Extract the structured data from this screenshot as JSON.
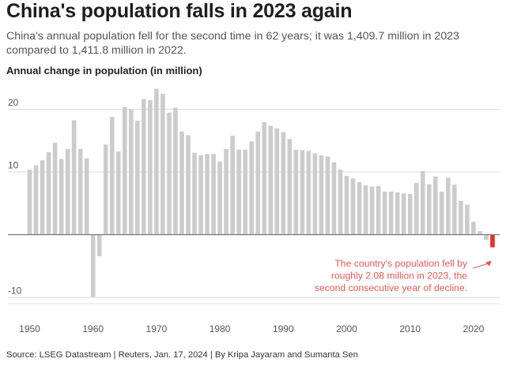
{
  "title": "China's population falls in 2023 again",
  "subtitle": "China's annual population fell for the second time in 62 years; it was 1,409.7 million in 2023 compared to 1,411.8 million in 2022.",
  "source": "Source: LSEG Datastream | Reuters, Jan. 17, 2024 | By Kripa Jayaram and Sumanta Sen",
  "colors": {
    "bar": "#cccccc",
    "highlight": "#e8302e",
    "annotation": "#e05a55",
    "grid": "#dddddd",
    "axis": "#777777"
  },
  "chart_data": {
    "type": "bar",
    "title": "China's population falls in 2023 again",
    "subtitle": "China's annual population fell for the second time in 62 years; it was 1,409.7 million in 2023 compared to 1,411.8 million in 2022.",
    "ylabel": "Annual change in population (in million)",
    "xlabel": "",
    "ylim": [
      -10,
      24
    ],
    "xlim": [
      1949,
      2024
    ],
    "yticks": [
      -10,
      10,
      20
    ],
    "xticks": [
      1950,
      1960,
      1970,
      1980,
      1990,
      2000,
      2010,
      2020
    ],
    "grid": true,
    "x": [
      1950,
      1951,
      1952,
      1953,
      1954,
      1955,
      1956,
      1957,
      1958,
      1959,
      1960,
      1961,
      1962,
      1963,
      1964,
      1965,
      1966,
      1967,
      1968,
      1969,
      1970,
      1971,
      1972,
      1973,
      1974,
      1975,
      1976,
      1977,
      1978,
      1979,
      1980,
      1981,
      1982,
      1983,
      1984,
      1985,
      1986,
      1987,
      1988,
      1989,
      1990,
      1991,
      1992,
      1993,
      1994,
      1995,
      1996,
      1997,
      1998,
      1999,
      2000,
      2001,
      2002,
      2003,
      2004,
      2005,
      2006,
      2007,
      2008,
      2009,
      2010,
      2011,
      2012,
      2013,
      2014,
      2015,
      2016,
      2017,
      2018,
      2019,
      2020,
      2021,
      2022,
      2023
    ],
    "values": [
      10.3,
      11.0,
      11.8,
      13.1,
      14.6,
      12.0,
      13.6,
      18.2,
      13.6,
      12.1,
      -10.0,
      -3.5,
      14.3,
      18.7,
      13.2,
      20.3,
      19.9,
      18.1,
      21.6,
      21.4,
      23.2,
      22.4,
      19.4,
      20.2,
      16.4,
      15.8,
      13.0,
      12.6,
      12.8,
      12.8,
      11.6,
      13.6,
      15.7,
      13.5,
      13.5,
      14.8,
      16.4,
      17.9,
      17.3,
      16.9,
      16.3,
      15.2,
      13.5,
      13.4,
      13.3,
      12.9,
      12.6,
      12.4,
      11.5,
      10.3,
      9.3,
      8.9,
      8.3,
      7.8,
      7.6,
      7.7,
      6.8,
      6.8,
      6.7,
      6.5,
      6.4,
      8.2,
      10.1,
      8.0,
      9.2,
      6.8,
      9.0,
      7.9,
      5.3,
      4.7,
      2.0,
      0.5,
      -0.9,
      -2.08
    ],
    "highlight_years": [
      2022,
      2023
    ],
    "annotation": {
      "year": 2023,
      "text": [
        "The country's population fell by",
        "roughly 2.08 million in 2023, the",
        "second consecutive year of decline."
      ]
    }
  }
}
